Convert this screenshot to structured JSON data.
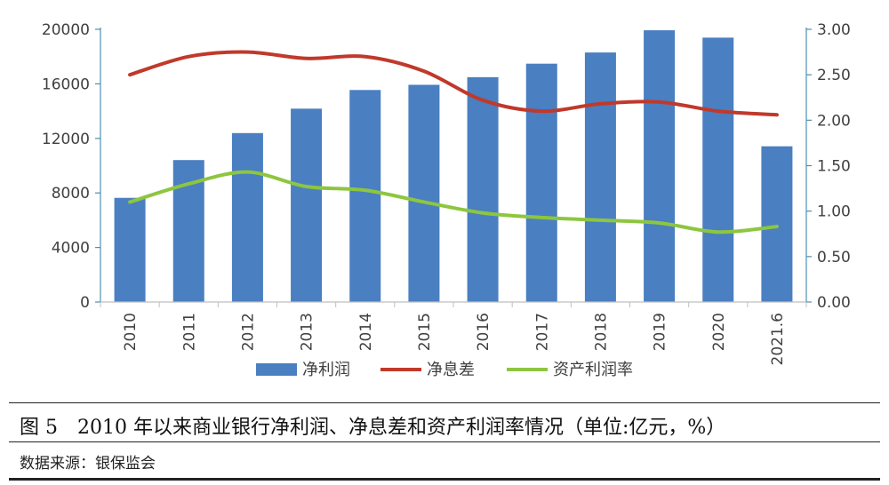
{
  "chart_data": {
    "type": "bar+line",
    "categories": [
      "2010",
      "2011",
      "2012",
      "2013",
      "2014",
      "2015",
      "2016",
      "2017",
      "2018",
      "2019",
      "2020",
      "2021.6"
    ],
    "series": [
      {
        "name": "净利润",
        "type": "bar",
        "axis": "left",
        "color": "#4a7fc1",
        "values": [
          7640,
          10410,
          12390,
          14180,
          15550,
          15930,
          16490,
          17480,
          18300,
          19930,
          19390,
          11420
        ]
      },
      {
        "name": "净息差",
        "type": "line",
        "axis": "right",
        "color": "#c0392b",
        "values": [
          2.5,
          2.7,
          2.75,
          2.68,
          2.7,
          2.54,
          2.22,
          2.1,
          2.18,
          2.2,
          2.1,
          2.06
        ]
      },
      {
        "name": "资产利润率",
        "type": "line",
        "axis": "right",
        "color": "#8dc63f",
        "values": [
          1.1,
          1.3,
          1.43,
          1.27,
          1.23,
          1.1,
          0.98,
          0.93,
          0.9,
          0.87,
          0.77,
          0.83
        ]
      }
    ],
    "left_axis": {
      "min": 0,
      "max": 20000,
      "ticks": [
        "0",
        "4000",
        "8000",
        "12000",
        "16000",
        "20000"
      ]
    },
    "right_axis": {
      "min": 0,
      "max": 3,
      "ticks": [
        "0.00",
        "0.50",
        "1.00",
        "1.50",
        "2.00",
        "2.50",
        "3.00"
      ]
    },
    "legend_position": "bottom",
    "grid": false
  },
  "caption": "图 5　2010 年以来商业银行净利润、净息差和资产利润率情况（单位:亿元，%）",
  "source": "数据来源：银保监会"
}
